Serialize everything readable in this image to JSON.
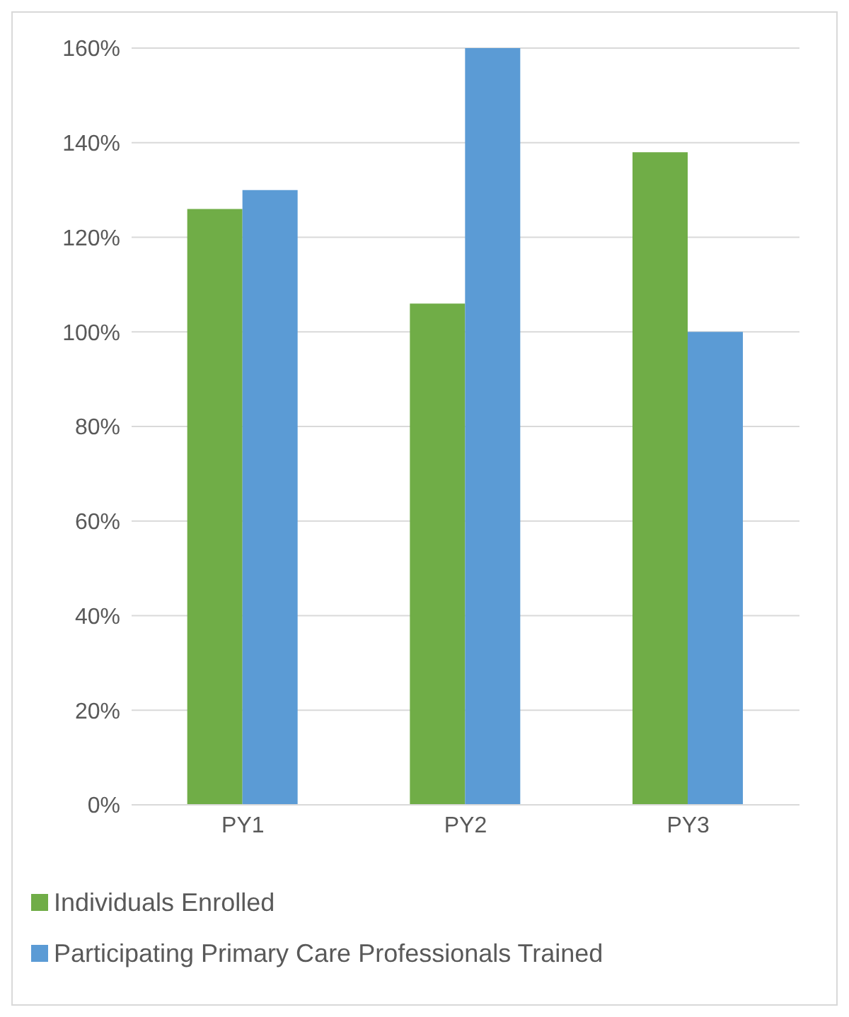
{
  "chart_data": {
    "type": "bar",
    "categories": [
      "PY1",
      "PY2",
      "PY3"
    ],
    "series": [
      {
        "name": "Individuals Enrolled",
        "color": "#70ad47",
        "values": [
          126,
          106,
          138
        ]
      },
      {
        "name": "Participating Primary Care Professionals Trained",
        "color": "#5b9bd5",
        "values": [
          130,
          160,
          100
        ]
      }
    ],
    "ylim": [
      0,
      160
    ],
    "yticks": [
      {
        "value": 0,
        "label": "0%"
      },
      {
        "value": 20,
        "label": "20%"
      },
      {
        "value": 40,
        "label": "40%"
      },
      {
        "value": 60,
        "label": "60%"
      },
      {
        "value": 80,
        "label": "80%"
      },
      {
        "value": 100,
        "label": "100%"
      },
      {
        "value": 120,
        "label": "120%"
      },
      {
        "value": 140,
        "label": "140%"
      },
      {
        "value": 160,
        "label": "160%"
      }
    ],
    "grid": "y",
    "legend": "bottom"
  }
}
